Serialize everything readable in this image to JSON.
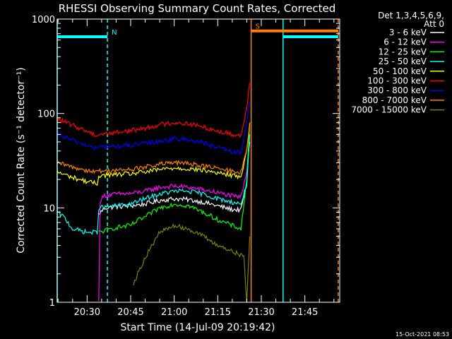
{
  "chart_data": {
    "type": "line",
    "title": "RHESSI Observing Summary Count Rates, Corrected",
    "xlabel": "Start Time (14-Jul-09 20:19:42)",
    "ylabel": "Corrected Count Rate (s⁻¹ detector⁻¹)",
    "y_scale": "log",
    "ylim": [
      1,
      1000
    ],
    "y_ticks": [
      {
        "value": 1,
        "label": "1"
      },
      {
        "value": 10,
        "label": "10"
      },
      {
        "value": 100,
        "label": "100"
      },
      {
        "value": 1000,
        "label": "1000"
      }
    ],
    "xlim": [
      "20:19:42",
      "21:57:00"
    ],
    "x_ticks": [
      {
        "value": "20:30",
        "label": "20:30"
      },
      {
        "value": "20:45",
        "label": "20:45"
      },
      {
        "value": "21:00",
        "label": "21:00"
      },
      {
        "value": "21:15",
        "label": "21:15"
      },
      {
        "value": "21:30",
        "label": "21:30"
      },
      {
        "value": "21:45",
        "label": "21:45"
      }
    ],
    "legend_header": [
      "Det 1,3,4,5,6,9,",
      "Att 0"
    ],
    "legend_position": "right",
    "background": "#000000",
    "series": [
      {
        "name": "3 - 6 keV",
        "color": "#ffffff",
        "x": [
          "20:34:00",
          "20:36:00",
          "20:40:00",
          "20:45:00",
          "20:50:00",
          "20:55:00",
          "21:00:00",
          "21:05:00",
          "21:10:00",
          "21:15:00",
          "21:20:00",
          "21:23:00",
          "21:25:00",
          "21:25:30",
          "21:26:00"
        ],
        "y": [
          8.5,
          10.0,
          10.3,
          10.5,
          11.0,
          12.0,
          12.5,
          12.2,
          11.5,
          10.5,
          9.6,
          9.5,
          18,
          35,
          50
        ]
      },
      {
        "name": "6 - 12 keV",
        "color": "#ff00ff",
        "x": [
          "20:34:00",
          "20:34:30",
          "20:36:00",
          "20:40:00",
          "20:45:00",
          "20:50:00",
          "20:55:00",
          "21:00:00",
          "21:05:00",
          "21:10:00",
          "21:15:00",
          "21:20:00",
          "21:23:00",
          "21:25:00",
          "21:26:00"
        ],
        "y": [
          1,
          12,
          13.5,
          14,
          14.2,
          15,
          16.5,
          17,
          16.5,
          15.5,
          14.5,
          13.3,
          13,
          25,
          60
        ]
      },
      {
        "name": "12 - 25 keV",
        "color": "#00ff00",
        "x": [
          "20:34:00",
          "20:40:00",
          "20:45:00",
          "20:48:00",
          "20:50:00",
          "20:55:00",
          "21:00:00",
          "21:05:00",
          "21:10:00",
          "21:15:00",
          "21:20:00",
          "21:23:00",
          "21:25:00",
          "21:26:00"
        ],
        "y": [
          5.5,
          6.2,
          6.5,
          7.5,
          8,
          10,
          11,
          10.5,
          9,
          7.5,
          6.5,
          6,
          20,
          80
        ]
      },
      {
        "name": "25 - 50 keV",
        "color": "#00ffff",
        "x": [
          "20:19:42",
          "20:22:00",
          "20:25:00",
          "20:30:00",
          "20:33:30",
          "20:34:00",
          "20:40:00",
          "20:45:00",
          "20:50:00",
          "20:55:00",
          "21:00:00",
          "21:05:00",
          "21:10:00",
          "21:15:00",
          "21:20:00",
          "21:23:00",
          "21:25:00",
          "21:26:00"
        ],
        "y": [
          9,
          8,
          6,
          5.5,
          5.5,
          10,
          10.5,
          11,
          12.5,
          14,
          15,
          15,
          14,
          12.5,
          11.5,
          11,
          18,
          60
        ]
      },
      {
        "name": "50 - 100 keV",
        "color": "#ffff00",
        "x": [
          "20:19:42",
          "20:25:00",
          "20:30:00",
          "20:33:30",
          "20:34:00",
          "20:40:00",
          "20:45:00",
          "20:50:00",
          "20:55:00",
          "21:00:00",
          "21:05:00",
          "21:10:00",
          "21:15:00",
          "21:20:00",
          "21:23:00",
          "21:25:00",
          "21:26:00"
        ],
        "y": [
          24,
          21,
          19,
          18,
          22,
          22.5,
          23,
          24,
          25.5,
          26.5,
          26,
          25,
          23.5,
          22,
          21.5,
          40,
          80
        ]
      },
      {
        "name": "100 - 300 keV",
        "color": "#ff0000",
        "x": [
          "20:19:42",
          "20:25:00",
          "20:30:00",
          "20:33:30",
          "20:34:00",
          "20:40:00",
          "20:45:00",
          "20:50:00",
          "20:55:00",
          "21:00:00",
          "21:05:00",
          "21:10:00",
          "21:15:00",
          "21:20:00",
          "21:23:00",
          "21:25:00",
          "21:26:00"
        ],
        "y": [
          88,
          75,
          65,
          58,
          60,
          63,
          66,
          70,
          76,
          80,
          78,
          72,
          65,
          60,
          58,
          120,
          210
        ]
      },
      {
        "name": "300 - 800 keV",
        "color": "#0000ff",
        "x": [
          "20:19:42",
          "20:25:00",
          "20:30:00",
          "20:33:30",
          "20:34:00",
          "20:40:00",
          "20:45:00",
          "20:50:00",
          "20:55:00",
          "21:00:00",
          "21:05:00",
          "21:10:00",
          "21:15:00",
          "21:20:00",
          "21:23:00",
          "21:25:00",
          "21:26:00"
        ],
        "y": [
          60,
          52,
          46,
          42,
          44,
          45,
          46,
          48,
          51,
          54,
          53,
          49,
          43,
          39,
          38,
          80,
          135
        ]
      },
      {
        "name": "800 - 7000 keV",
        "color": "#ff8000",
        "x": [
          "20:19:42",
          "20:25:00",
          "20:30:00",
          "20:33:30",
          "20:34:00",
          "20:40:00",
          "20:45:00",
          "20:50:00",
          "20:55:00",
          "21:00:00",
          "21:05:00",
          "21:10:00",
          "21:15:00",
          "21:20:00",
          "21:23:00",
          "21:25:00",
          "21:26:00"
        ],
        "y": [
          30,
          27,
          25,
          24,
          24.5,
          25,
          25.5,
          27,
          29,
          30,
          29.5,
          28,
          26,
          24.5,
          24,
          40,
          80
        ]
      },
      {
        "name": "7000 - 15000 keV",
        "color": "#808000",
        "x": [
          "20:46:00",
          "20:50:00",
          "20:55:00",
          "21:00:00",
          "21:05:00",
          "21:10:00",
          "21:15:00",
          "21:20:00",
          "21:24:00",
          "21:25:00",
          "21:26:00"
        ],
        "y": [
          1.6,
          3,
          5.5,
          6.5,
          6,
          5,
          4,
          3.5,
          3,
          1,
          5
        ]
      }
    ],
    "flags": [
      {
        "label": "N",
        "color": "#00ffff",
        "level": 650,
        "start": "20:19:42",
        "end": "20:37:00",
        "mark": "20:37:00"
      },
      {
        "label": "S",
        "color": "#ff8000",
        "level": 750,
        "start": "21:26:30",
        "end": "21:56:30",
        "mark": "21:26:30"
      }
    ],
    "flag_extra": [
      {
        "color": "#00ffff",
        "level": 650,
        "start": "21:37:30",
        "end": "21:56:30"
      }
    ],
    "vertical_markers": [
      {
        "x": "20:19:42",
        "color": "#00ffff",
        "style": "solid"
      },
      {
        "x": "20:37:00",
        "color": "#00ffff",
        "style": "dashed"
      },
      {
        "x": "21:26:30",
        "color": "#ff8000",
        "style": "solid"
      },
      {
        "x": "21:37:30",
        "color": "#00ffff",
        "style": "solid"
      },
      {
        "x": "21:56:30",
        "color": "#ff8000",
        "style": "dashed"
      }
    ],
    "footer": "15-Oct-2021 08:53"
  }
}
